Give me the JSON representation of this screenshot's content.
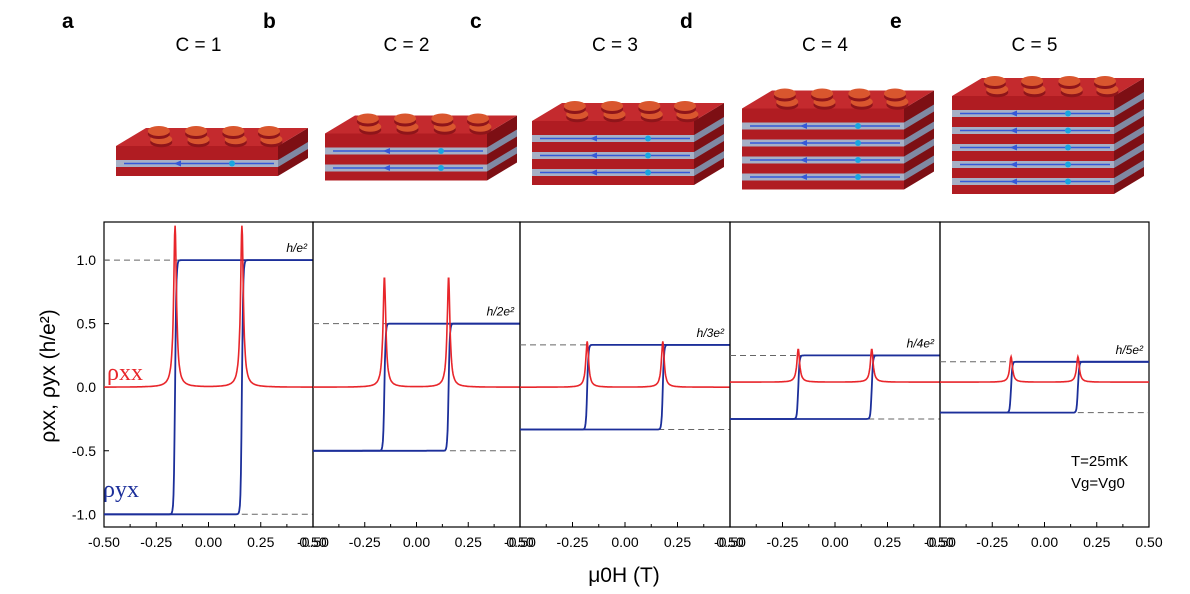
{
  "figure": {
    "y_axis_label": "ρxx, ρyx (h/e²)",
    "x_axis_label": "μ0H (T)",
    "legend_rho_xx": "ρxx",
    "legend_rho_yx": "ρyx",
    "temperature_note": "T=25mK",
    "gate_note": "Vg=Vg0",
    "colors": {
      "rho_xx": "#e8262b",
      "rho_yx": "#1c2f9a",
      "dashed": "#666666",
      "brick": "#b01c22"
    }
  },
  "chart_data": [
    {
      "type": "line",
      "panel": "a",
      "title": "C = 1",
      "quantized_label": "h/e²",
      "xlim": [
        -0.5,
        0.5
      ],
      "ylim": [
        -1.1,
        1.3
      ],
      "xticks": [
        "-0.50",
        "-0.25",
        "0.00",
        "0.25",
        "0.50"
      ],
      "yticks": [
        "-1.0",
        "-0.5",
        "0.0",
        "0.5",
        "1.0"
      ],
      "plateau": 1.0,
      "coercive_field": 0.16,
      "rho_xx_peak": 1.27,
      "rho_xx_baseline": 0.0,
      "series": [
        {
          "name": "ρxx"
        },
        {
          "name": "ρyx"
        }
      ]
    },
    {
      "type": "line",
      "panel": "b",
      "title": "C = 2",
      "quantized_label": "h/2e²",
      "xlim": [
        -0.5,
        0.5
      ],
      "ylim": [
        -1.1,
        1.3
      ],
      "xticks": [
        "-0.50",
        "-0.25",
        "0.00",
        "0.25",
        "0.50"
      ],
      "plateau": 0.5,
      "coercive_field": 0.155,
      "rho_xx_peak": 0.87,
      "rho_xx_baseline": 0.0,
      "series": [
        {
          "name": "ρxx"
        },
        {
          "name": "ρyx"
        }
      ]
    },
    {
      "type": "line",
      "panel": "c",
      "title": "C = 3",
      "quantized_label": "h/3e²",
      "xlim": [
        -0.5,
        0.5
      ],
      "ylim": [
        -1.1,
        1.3
      ],
      "xticks": [
        "-0.50",
        "-0.25",
        "0.00",
        "0.25",
        "0.50"
      ],
      "plateau": 0.333,
      "coercive_field": 0.18,
      "rho_xx_peak": 0.36,
      "rho_xx_baseline": 0.0,
      "series": [
        {
          "name": "ρxx"
        },
        {
          "name": "ρyx"
        }
      ]
    },
    {
      "type": "line",
      "panel": "d",
      "title": "C = 4",
      "quantized_label": "h/4e²",
      "xlim": [
        -0.5,
        0.5
      ],
      "ylim": [
        -1.1,
        1.3
      ],
      "xticks": [
        "-0.50",
        "-0.25",
        "0.00",
        "0.25",
        "0.50"
      ],
      "plateau": 0.25,
      "coercive_field": 0.175,
      "rho_xx_peak": 0.3,
      "rho_xx_baseline": 0.04,
      "series": [
        {
          "name": "ρxx"
        },
        {
          "name": "ρyx"
        }
      ]
    },
    {
      "type": "line",
      "panel": "e",
      "title": "C = 5",
      "quantized_label": "h/5e²",
      "xlim": [
        -0.5,
        0.5
      ],
      "ylim": [
        -1.1,
        1.3
      ],
      "xticks": [
        "-0.50",
        "-0.25",
        "0.00",
        "0.25",
        "0.50"
      ],
      "plateau": 0.2,
      "coercive_field": 0.16,
      "rho_xx_peak": 0.24,
      "rho_xx_baseline": 0.04,
      "series": [
        {
          "name": "ρxx"
        },
        {
          "name": "ρyx"
        }
      ]
    }
  ]
}
